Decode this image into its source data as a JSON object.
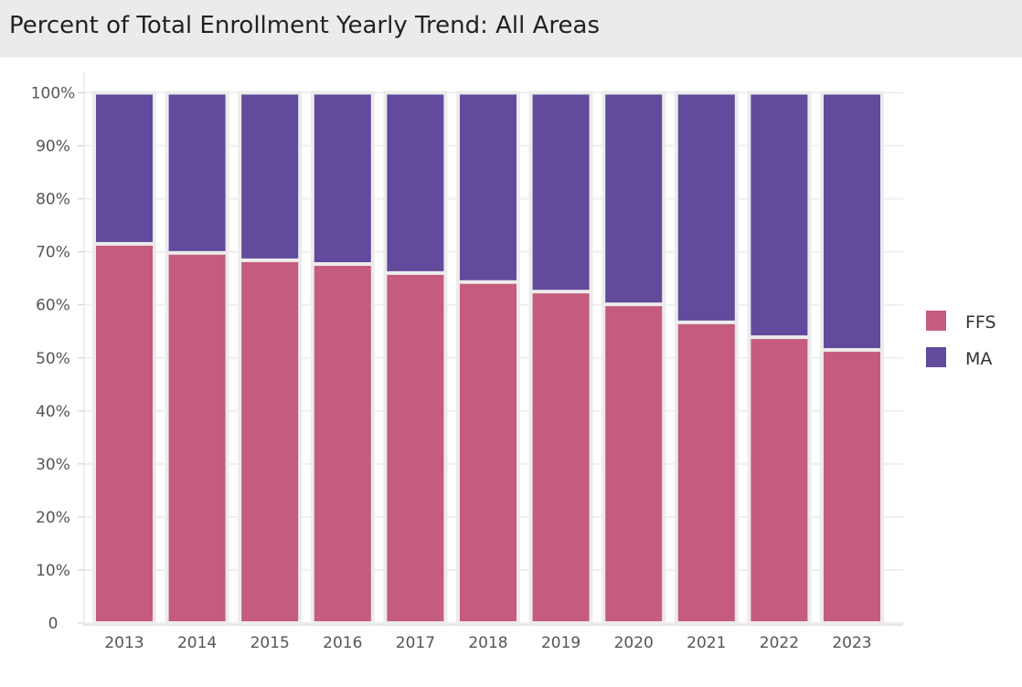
{
  "header": {
    "title": "Percent of Total Enrollment Yearly Trend: All Areas"
  },
  "chart_data": {
    "type": "bar",
    "stacked": true,
    "title": "Percent of Total Enrollment Yearly Trend: All Areas",
    "xlabel": "",
    "ylabel": "",
    "ylim": [
      0,
      100
    ],
    "yticks": [
      "0",
      "10%",
      "20%",
      "30%",
      "40%",
      "50%",
      "60%",
      "70%",
      "80%",
      "90%",
      "100%"
    ],
    "categories": [
      "2013",
      "2014",
      "2015",
      "2016",
      "2017",
      "2018",
      "2019",
      "2020",
      "2021",
      "2022",
      "2023"
    ],
    "series": [
      {
        "name": "FFS",
        "color": "#c55b7d",
        "values": [
          71.5,
          69.8,
          68.4,
          67.7,
          66.0,
          64.3,
          62.5,
          60.1,
          56.7,
          53.9,
          51.5
        ]
      },
      {
        "name": "MA",
        "color": "#624a9c",
        "values": [
          28.5,
          30.2,
          31.6,
          32.3,
          34.0,
          35.7,
          37.5,
          39.9,
          43.3,
          46.1,
          48.5
        ]
      }
    ],
    "grid": true,
    "legend": "right"
  }
}
